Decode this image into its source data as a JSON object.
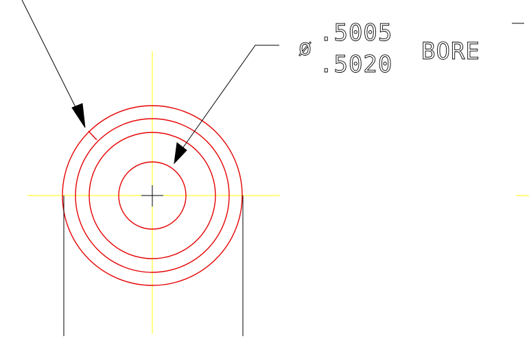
{
  "colors": {
    "background": "#ffffff",
    "geometry": "#e60000",
    "centerline": "#ffff00",
    "dimension": "#000000"
  },
  "callout": {
    "diameter_symbol": "ø",
    "upper_tolerance": ".5005",
    "lower_tolerance": ".5020",
    "feature": "BORE"
  }
}
